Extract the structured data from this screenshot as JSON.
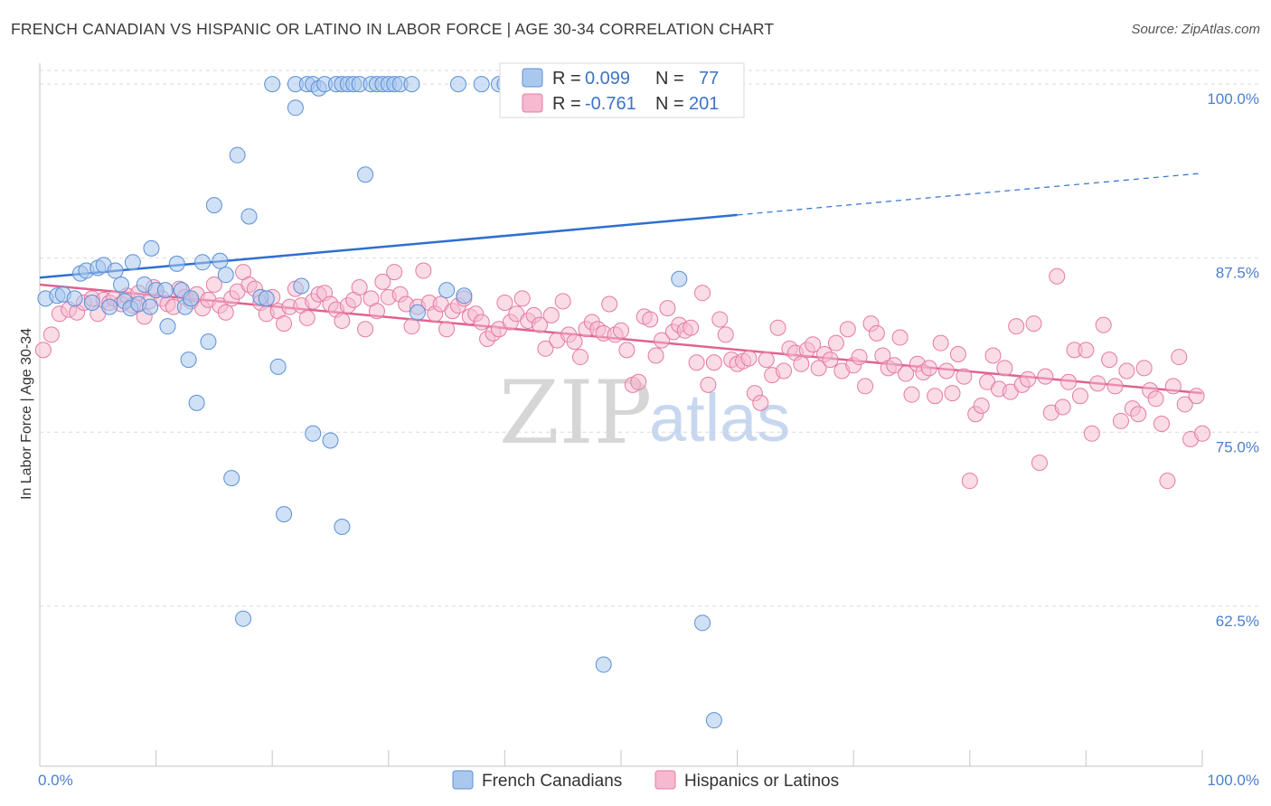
{
  "title": "FRENCH CANADIAN VS HISPANIC OR LATINO IN LABOR FORCE | AGE 30-34 CORRELATION CHART",
  "source": "Source: ZipAtlas.com",
  "watermark": {
    "part1": "ZIP",
    "part2": "atlas"
  },
  "colors": {
    "blue_fill": "#aac8ee",
    "blue_stroke": "#5b8fd6",
    "blue_line": "#2f6fd0",
    "pink_fill": "#f6b9cf",
    "pink_stroke": "#e57aa2",
    "pink_line": "#e0628f",
    "grid": "#d9d9d9",
    "tick_label": "#4a7fd0"
  },
  "legend": {
    "rows": [
      {
        "r_label": "R =",
        "r_value": "0.099",
        "n_label": "N =",
        "n_value": "77"
      },
      {
        "r_label": "R =",
        "r_value": "-0.761",
        "n_label": "N =",
        "n_value": "201"
      }
    ]
  },
  "chart_data": {
    "type": "scatter",
    "title": "FRENCH CANADIAN VS HISPANIC OR LATINO IN LABOR FORCE | AGE 30-34 CORRELATION CHART",
    "xlabel": "",
    "ylabel": "In Labor Force | Age 30-34",
    "xlim": [
      0,
      100
    ],
    "ylim": [
      51,
      101.5
    ],
    "x_tick_labels": [
      "0.0%",
      "100.0%"
    ],
    "y_ticks": [
      62.5,
      75.0,
      87.5,
      100.0
    ],
    "y_tick_labels": [
      "62.5%",
      "75.0%",
      "87.5%",
      "100.0%"
    ],
    "grid": true,
    "legend_position": "top-center",
    "series": [
      {
        "name": "French Canadians",
        "R": 0.099,
        "N": 77,
        "trend": {
          "x0": 0,
          "y0": 86.1,
          "x1": 60,
          "y1": 90.6,
          "dashed_to_x": 100,
          "dashed_to_y": 93.6
        },
        "points": [
          [
            0.5,
            84.6
          ],
          [
            1.5,
            84.8
          ],
          [
            2,
            84.9
          ],
          [
            3,
            84.6
          ],
          [
            3.5,
            86.4
          ],
          [
            4,
            86.6
          ],
          [
            4.5,
            84.3
          ],
          [
            5,
            86.8
          ],
          [
            5.5,
            87.0
          ],
          [
            6,
            84.0
          ],
          [
            6.5,
            86.6
          ],
          [
            7,
            85.6
          ],
          [
            7.3,
            84.4
          ],
          [
            7.8,
            83.9
          ],
          [
            8,
            87.2
          ],
          [
            8.5,
            84.2
          ],
          [
            9,
            85.6
          ],
          [
            9.5,
            84.0
          ],
          [
            9.6,
            88.2
          ],
          [
            10,
            85.2
          ],
          [
            10.8,
            85.2
          ],
          [
            11,
            82.6
          ],
          [
            11.8,
            87.1
          ],
          [
            12.2,
            85.2
          ],
          [
            12.5,
            84.0
          ],
          [
            12.8,
            80.2
          ],
          [
            13,
            84.6
          ],
          [
            13.5,
            77.1
          ],
          [
            14,
            87.2
          ],
          [
            14.5,
            81.5
          ],
          [
            15,
            91.3
          ],
          [
            15.5,
            87.3
          ],
          [
            16,
            86.3
          ],
          [
            16.5,
            71.7
          ],
          [
            17,
            94.9
          ],
          [
            17.5,
            61.6
          ],
          [
            18,
            90.5
          ],
          [
            19,
            84.7
          ],
          [
            19.5,
            84.6
          ],
          [
            20,
            100
          ],
          [
            20.5,
            79.7
          ],
          [
            21,
            69.1
          ],
          [
            22,
            100
          ],
          [
            22,
            98.3
          ],
          [
            22.5,
            85.5
          ],
          [
            23,
            100
          ],
          [
            23.5,
            100
          ],
          [
            23.5,
            74.9
          ],
          [
            24,
            99.7
          ],
          [
            24.5,
            100
          ],
          [
            25,
            74.4
          ],
          [
            25.5,
            100
          ],
          [
            26,
            100
          ],
          [
            26,
            68.2
          ],
          [
            26.5,
            100
          ],
          [
            27,
            100
          ],
          [
            27.5,
            100
          ],
          [
            28,
            93.5
          ],
          [
            28.5,
            100
          ],
          [
            29,
            100
          ],
          [
            29.5,
            100
          ],
          [
            30,
            100
          ],
          [
            30.5,
            100
          ],
          [
            31,
            100
          ],
          [
            32,
            100
          ],
          [
            32.5,
            83.6
          ],
          [
            35,
            85.2
          ],
          [
            36,
            100
          ],
          [
            36.5,
            84.8
          ],
          [
            38,
            100
          ],
          [
            39.5,
            100
          ],
          [
            40,
            100
          ],
          [
            42,
            100
          ],
          [
            43,
            100
          ],
          [
            48.5,
            58.3
          ],
          [
            55,
            86.0
          ],
          [
            57,
            61.3
          ],
          [
            58,
            54.3
          ]
        ]
      },
      {
        "name": "Hispanics or Latinos",
        "R": -0.761,
        "N": 201,
        "trend": {
          "x0": 0,
          "y0": 85.6,
          "x1": 100,
          "y1": 77.8
        },
        "points": [
          [
            0.3,
            80.9
          ],
          [
            1,
            82.0
          ],
          [
            1.7,
            83.5
          ],
          [
            2.5,
            83.8
          ],
          [
            3.2,
            83.6
          ],
          [
            3.8,
            84.3
          ],
          [
            4.5,
            84.6
          ],
          [
            5,
            83.5
          ],
          [
            5.5,
            84.5
          ],
          [
            6,
            84.3
          ],
          [
            6.4,
            84.6
          ],
          [
            7,
            84.2
          ],
          [
            7.5,
            84.8
          ],
          [
            8,
            84.1
          ],
          [
            8.5,
            85.0
          ],
          [
            9,
            83.3
          ],
          [
            9.4,
            84.4
          ],
          [
            9.8,
            85.4
          ],
          [
            10.5,
            84.6
          ],
          [
            11,
            84.2
          ],
          [
            11.5,
            84.0
          ],
          [
            12,
            85.3
          ],
          [
            12.5,
            84.7
          ],
          [
            13,
            84.4
          ],
          [
            13.5,
            84.9
          ],
          [
            14,
            83.9
          ],
          [
            14.5,
            84.5
          ],
          [
            15,
            85.6
          ],
          [
            15.5,
            84.1
          ],
          [
            16,
            83.6
          ],
          [
            16.5,
            84.6
          ],
          [
            17,
            85.1
          ],
          [
            17.5,
            86.5
          ],
          [
            18,
            85.6
          ],
          [
            18.5,
            85.3
          ],
          [
            19,
            84.3
          ],
          [
            19.5,
            83.5
          ],
          [
            20,
            84.7
          ],
          [
            20.5,
            83.7
          ],
          [
            21,
            82.8
          ],
          [
            21.5,
            84.0
          ],
          [
            22,
            85.3
          ],
          [
            22.5,
            84.1
          ],
          [
            23,
            83.2
          ],
          [
            23.5,
            84.4
          ],
          [
            24,
            84.9
          ],
          [
            24.5,
            85.0
          ],
          [
            25,
            84.2
          ],
          [
            25.5,
            83.8
          ],
          [
            26,
            83.0
          ],
          [
            26.5,
            84.1
          ],
          [
            27,
            84.5
          ],
          [
            27.5,
            85.4
          ],
          [
            28,
            82.4
          ],
          [
            28.5,
            84.6
          ],
          [
            29,
            83.7
          ],
          [
            29.5,
            85.8
          ],
          [
            30,
            84.7
          ],
          [
            30.5,
            86.5
          ],
          [
            31,
            84.9
          ],
          [
            31.5,
            84.2
          ],
          [
            32,
            82.6
          ],
          [
            32.5,
            84.0
          ],
          [
            33,
            86.6
          ],
          [
            33.5,
            84.3
          ],
          [
            34,
            83.5
          ],
          [
            34.5,
            84.2
          ],
          [
            35,
            82.4
          ],
          [
            35.5,
            83.7
          ],
          [
            36,
            84.1
          ],
          [
            36.5,
            84.6
          ],
          [
            37,
            83.3
          ],
          [
            37.5,
            83.5
          ],
          [
            38,
            82.9
          ],
          [
            38.5,
            81.7
          ],
          [
            39,
            82.1
          ],
          [
            39.5,
            82.4
          ],
          [
            40,
            84.3
          ],
          [
            40.5,
            82.9
          ],
          [
            41,
            83.5
          ],
          [
            41.5,
            84.6
          ],
          [
            42,
            83.0
          ],
          [
            42.5,
            83.4
          ],
          [
            43,
            82.7
          ],
          [
            43.5,
            81.0
          ],
          [
            44,
            83.4
          ],
          [
            44.5,
            81.6
          ],
          [
            45,
            84.4
          ],
          [
            45.5,
            82.0
          ],
          [
            46,
            81.5
          ],
          [
            46.5,
            80.4
          ],
          [
            47,
            82.4
          ],
          [
            47.5,
            82.9
          ],
          [
            48,
            82.4
          ],
          [
            48.5,
            82.1
          ],
          [
            49,
            84.2
          ],
          [
            49.5,
            82.0
          ],
          [
            50,
            82.3
          ],
          [
            50.5,
            80.9
          ],
          [
            51,
            78.4
          ],
          [
            51.5,
            78.6
          ],
          [
            52,
            83.3
          ],
          [
            52.5,
            83.1
          ],
          [
            53,
            80.5
          ],
          [
            53.5,
            81.6
          ],
          [
            54,
            83.9
          ],
          [
            54.5,
            82.2
          ],
          [
            55,
            82.7
          ],
          [
            55.5,
            82.3
          ],
          [
            56,
            82.5
          ],
          [
            56.5,
            80.0
          ],
          [
            57,
            85.0
          ],
          [
            57.5,
            78.4
          ],
          [
            58,
            80.0
          ],
          [
            58.5,
            83.1
          ],
          [
            59,
            82.0
          ],
          [
            59.5,
            80.2
          ],
          [
            60,
            79.9
          ],
          [
            60.5,
            80.1
          ],
          [
            61,
            80.3
          ],
          [
            61.5,
            77.8
          ],
          [
            62,
            77.1
          ],
          [
            62.5,
            80.2
          ],
          [
            63,
            79.1
          ],
          [
            63.5,
            82.5
          ],
          [
            64,
            79.4
          ],
          [
            64.5,
            81.0
          ],
          [
            65,
            80.7
          ],
          [
            65.5,
            79.9
          ],
          [
            66,
            80.9
          ],
          [
            66.5,
            81.3
          ],
          [
            67,
            79.6
          ],
          [
            67.5,
            80.6
          ],
          [
            68,
            80.2
          ],
          [
            68.5,
            81.4
          ],
          [
            69,
            79.4
          ],
          [
            69.5,
            82.4
          ],
          [
            70,
            79.8
          ],
          [
            70.5,
            80.4
          ],
          [
            71,
            78.3
          ],
          [
            71.5,
            82.8
          ],
          [
            72,
            82.1
          ],
          [
            72.5,
            80.5
          ],
          [
            73,
            79.6
          ],
          [
            73.5,
            79.8
          ],
          [
            74,
            81.8
          ],
          [
            74.5,
            79.2
          ],
          [
            75,
            77.7
          ],
          [
            75.5,
            79.9
          ],
          [
            76,
            79.3
          ],
          [
            76.5,
            79.6
          ],
          [
            77,
            77.6
          ],
          [
            77.5,
            81.4
          ],
          [
            78,
            79.4
          ],
          [
            78.5,
            77.8
          ],
          [
            79,
            80.6
          ],
          [
            79.5,
            79.0
          ],
          [
            80,
            71.5
          ],
          [
            80.5,
            76.3
          ],
          [
            81,
            76.9
          ],
          [
            81.5,
            78.6
          ],
          [
            82,
            80.5
          ],
          [
            82.5,
            78.1
          ],
          [
            83,
            79.6
          ],
          [
            83.5,
            77.9
          ],
          [
            84,
            82.6
          ],
          [
            84.5,
            78.4
          ],
          [
            85,
            78.8
          ],
          [
            85.5,
            82.8
          ],
          [
            86,
            72.8
          ],
          [
            86.5,
            79.0
          ],
          [
            87,
            76.4
          ],
          [
            87.5,
            86.2
          ],
          [
            88,
            76.8
          ],
          [
            88.5,
            78.6
          ],
          [
            89,
            80.9
          ],
          [
            89.5,
            77.6
          ],
          [
            90,
            80.9
          ],
          [
            90.5,
            74.9
          ],
          [
            91,
            78.5
          ],
          [
            91.5,
            82.7
          ],
          [
            92,
            80.2
          ],
          [
            92.5,
            78.3
          ],
          [
            93,
            75.8
          ],
          [
            93.5,
            79.4
          ],
          [
            94,
            76.7
          ],
          [
            94.5,
            76.3
          ],
          [
            95,
            79.6
          ],
          [
            95.5,
            78.0
          ],
          [
            96,
            77.4
          ],
          [
            96.5,
            75.6
          ],
          [
            97,
            71.5
          ],
          [
            97.5,
            78.3
          ],
          [
            98,
            80.4
          ],
          [
            98.5,
            77.0
          ],
          [
            99,
            74.5
          ],
          [
            99.5,
            77.6
          ],
          [
            100,
            74.9
          ]
        ]
      }
    ]
  }
}
